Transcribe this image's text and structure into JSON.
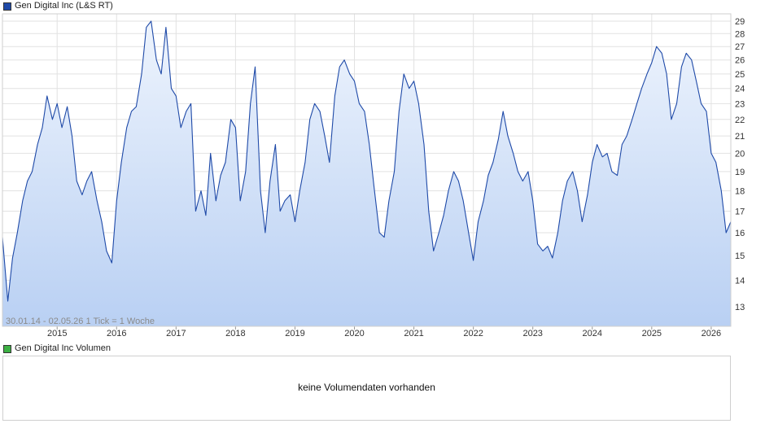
{
  "price_legend": {
    "label": "Gen Digital Inc (L&S RT)",
    "color": "#1f4aa8"
  },
  "volume_legend": {
    "label": "Gen Digital Inc Volumen",
    "color": "#3cb043"
  },
  "range_note": "30.01.14 - 02.05.26",
  "tick_note": "1 Tick = 1 Woche",
  "volume_message": "keine Volumendaten vorhanden",
  "chart_data": {
    "type": "area",
    "title": "Gen Digital Inc (L&S RT)",
    "xlabel": "",
    "ylabel": "",
    "x_ticks": [
      "2015",
      "2016",
      "2017",
      "2018",
      "2019",
      "2020",
      "2021",
      "2022",
      "2023",
      "2024",
      "2025",
      "2026"
    ],
    "y_ticks": [
      13,
      14,
      15,
      16,
      17,
      18,
      19,
      20,
      21,
      22,
      23,
      24,
      25,
      26,
      27,
      28,
      29
    ],
    "ylim": [
      12.3,
      29.6
    ],
    "y_scale": "log",
    "grid": true,
    "line_color": "#1f4aa8",
    "fill_color_top": "#eef4fd",
    "fill_color_bottom": "#b9d0f3",
    "series": [
      {
        "x": [
          2014.08,
          2014.17,
          2014.25,
          2014.33,
          2014.42,
          2014.5,
          2014.58,
          2014.67,
          2014.75,
          2014.83,
          2014.92,
          2015.0,
          2015.08,
          2015.17,
          2015.25,
          2015.33,
          2015.42,
          2015.5,
          2015.58,
          2015.67,
          2015.75,
          2015.83,
          2015.92,
          2016.0,
          2016.08,
          2016.17,
          2016.25,
          2016.33,
          2016.42,
          2016.5,
          2016.58,
          2016.67,
          2016.75,
          2016.83,
          2016.92,
          2017.0,
          2017.08,
          2017.17,
          2017.25,
          2017.33,
          2017.42,
          2017.5,
          2017.58,
          2017.67,
          2017.75,
          2017.83,
          2017.92,
          2018.0,
          2018.08,
          2018.17,
          2018.25,
          2018.33,
          2018.42,
          2018.5,
          2018.58,
          2018.67,
          2018.75,
          2018.83,
          2018.92,
          2019.0,
          2019.08,
          2019.17,
          2019.25,
          2019.33,
          2019.42,
          2019.5,
          2019.58,
          2019.67,
          2019.75,
          2019.83,
          2019.92,
          2020.0,
          2020.08,
          2020.17,
          2020.25,
          2020.33,
          2020.42,
          2020.5,
          2020.58,
          2020.67,
          2020.75,
          2020.83,
          2020.92,
          2021.0,
          2021.08,
          2021.17,
          2021.25,
          2021.33,
          2021.42,
          2021.5,
          2021.58,
          2021.67,
          2021.75,
          2021.83,
          2021.92,
          2022.0,
          2022.08,
          2022.17,
          2022.25,
          2022.33,
          2022.42,
          2022.5,
          2022.58,
          2022.67,
          2022.75,
          2022.83,
          2022.92,
          2023.0,
          2023.08,
          2023.17,
          2023.25,
          2023.33,
          2023.42,
          2023.5,
          2023.58,
          2023.67,
          2023.75,
          2023.83,
          2023.92,
          2024.0,
          2024.08,
          2024.17,
          2024.25,
          2024.33,
          2024.42,
          2024.5,
          2024.58,
          2024.67,
          2024.75,
          2024.83,
          2024.92,
          2025.0,
          2025.08,
          2025.17,
          2025.25,
          2025.33,
          2025.42,
          2025.5,
          2025.58,
          2025.67,
          2025.75,
          2025.83,
          2025.92,
          2026.0,
          2026.08,
          2026.17,
          2026.25,
          2026.33
        ],
        "values": [
          15.8,
          13.2,
          14.9,
          16.0,
          17.5,
          18.5,
          19.0,
          20.5,
          21.5,
          23.5,
          22.0,
          23.0,
          21.5,
          22.8,
          21.0,
          18.5,
          17.8,
          18.5,
          19.0,
          17.5,
          16.5,
          15.2,
          14.7,
          17.5,
          19.5,
          21.5,
          22.5,
          22.8,
          25.0,
          28.5,
          29.0,
          26.0,
          25.0,
          28.5,
          24.0,
          23.5,
          21.5,
          22.5,
          23.0,
          17.0,
          18.0,
          16.8,
          20.0,
          17.5,
          18.8,
          19.5,
          22.0,
          21.5,
          17.5,
          19.0,
          23.0,
          25.5,
          18.0,
          16.0,
          18.5,
          20.5,
          17.0,
          17.5,
          17.8,
          16.5,
          18.0,
          19.5,
          22.0,
          23.0,
          22.5,
          21.0,
          19.5,
          23.5,
          25.5,
          26.0,
          25.0,
          24.5,
          23.0,
          22.5,
          20.5,
          18.2,
          16.0,
          15.8,
          17.5,
          19.0,
          22.5,
          25.0,
          24.0,
          24.5,
          23.0,
          20.5,
          17.0,
          15.2,
          16.0,
          16.8,
          18.0,
          19.0,
          18.5,
          17.5,
          16.0,
          14.8,
          16.5,
          17.5,
          18.8,
          19.5,
          20.8,
          22.5,
          21.0,
          20.0,
          19.0,
          18.5,
          19.0,
          17.5,
          15.5,
          15.2,
          15.4,
          14.9,
          16.0,
          17.5,
          18.5,
          19.0,
          18.0,
          16.5,
          17.8,
          19.5,
          20.5,
          19.8,
          20.0,
          19.0,
          18.8,
          20.5,
          21.0,
          22.0,
          23.0,
          24.0,
          25.0,
          25.8,
          27.0,
          26.5,
          25.0,
          22.0,
          23.0,
          25.5,
          26.5,
          26.0,
          24.5,
          23.0,
          22.5,
          20.0,
          19.5,
          18.0,
          16.0,
          16.5
        ]
      }
    ]
  }
}
